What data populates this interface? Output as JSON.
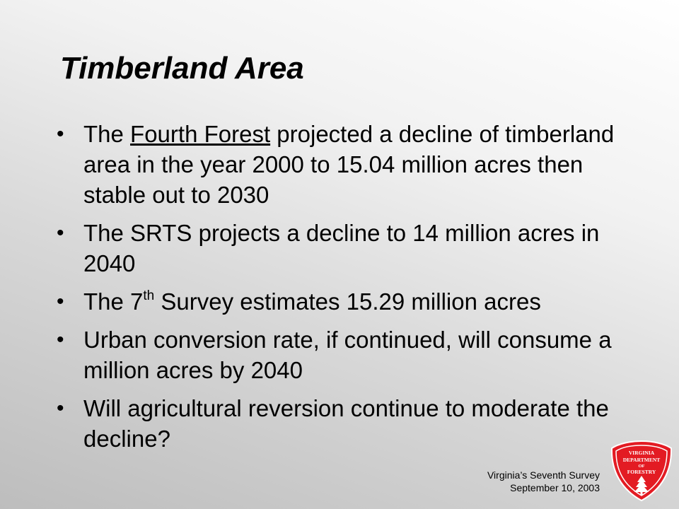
{
  "slide": {
    "title": "Timberland Area",
    "bullets": [
      {
        "pre": "The ",
        "underlined": "Fourth Forest",
        "post": " projected a decline of timberland area in the year 2000 to 15.04 million acres then stable out to 2030"
      },
      {
        "text": "The SRTS projects a decline to 14 million acres in 2040"
      },
      {
        "pre": "The 7",
        "sup": "th",
        "post": " Survey estimates 15.29 million acres"
      },
      {
        "text": "Urban conversion rate, if continued, will consume a million acres by 2040"
      },
      {
        "text": "Will agricultural reversion continue to moderate the decline?"
      }
    ],
    "bullet_glyph": "•"
  },
  "footer": {
    "line1": "Virginia’s Seventh Survey",
    "line2": "September 10, 2003"
  },
  "logo": {
    "line1": "VIRGINIA",
    "line2": "DEPARTMENT",
    "line3": "OF",
    "line4": "FORESTRY",
    "color": "#e31b23",
    "icon": "virginia-department-of-forestry-badge"
  }
}
